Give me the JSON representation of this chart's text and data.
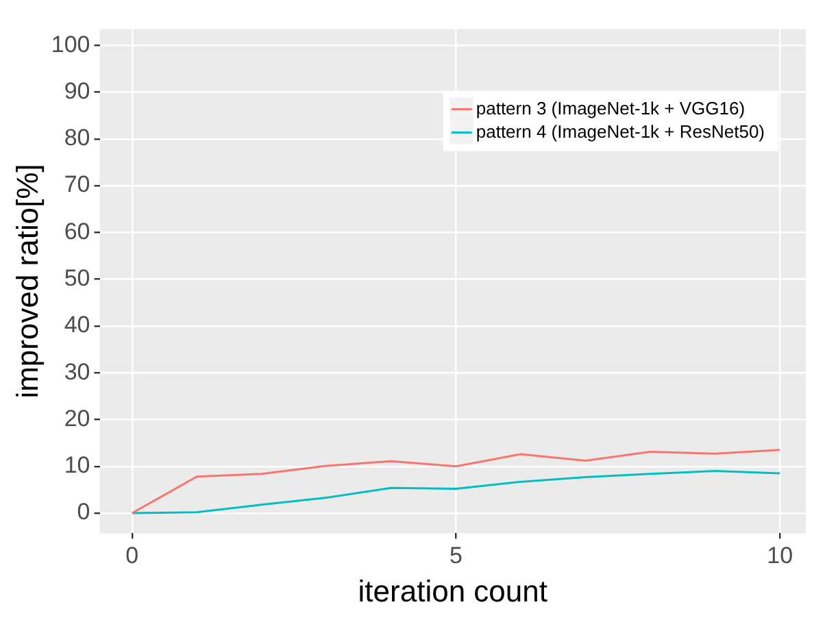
{
  "chart_data": {
    "type": "line",
    "xlabel": "iteration count",
    "ylabel": "improved ratio[%]",
    "x": [
      0,
      1,
      2,
      3,
      4,
      5,
      6,
      7,
      8,
      9,
      10
    ],
    "series": [
      {
        "name": "pattern 3 (ImageNet-1k + VGG16)",
        "color": "#f8766d",
        "values": [
          0,
          7.8,
          8.4,
          10.1,
          11.1,
          10,
          12.6,
          11.2,
          13.1,
          12.7,
          13.5
        ]
      },
      {
        "name": "pattern 4 (ImageNet-1k + ResNet50)",
        "color": "#00bfc4",
        "values": [
          0,
          0.2,
          1.8,
          3.3,
          5.4,
          5.2,
          6.7,
          7.7,
          8.4,
          9.0,
          8.5
        ]
      }
    ],
    "xlim": [
      -0.5,
      10.4
    ],
    "xticks": [
      0,
      5,
      10
    ],
    "ylim": [
      -4.3,
      103.5
    ],
    "yticks": [
      0,
      10,
      20,
      30,
      40,
      50,
      60,
      70,
      80,
      90,
      100
    ],
    "grid": true,
    "legend": "top right",
    "marker": "none",
    "line_style": "solid"
  }
}
